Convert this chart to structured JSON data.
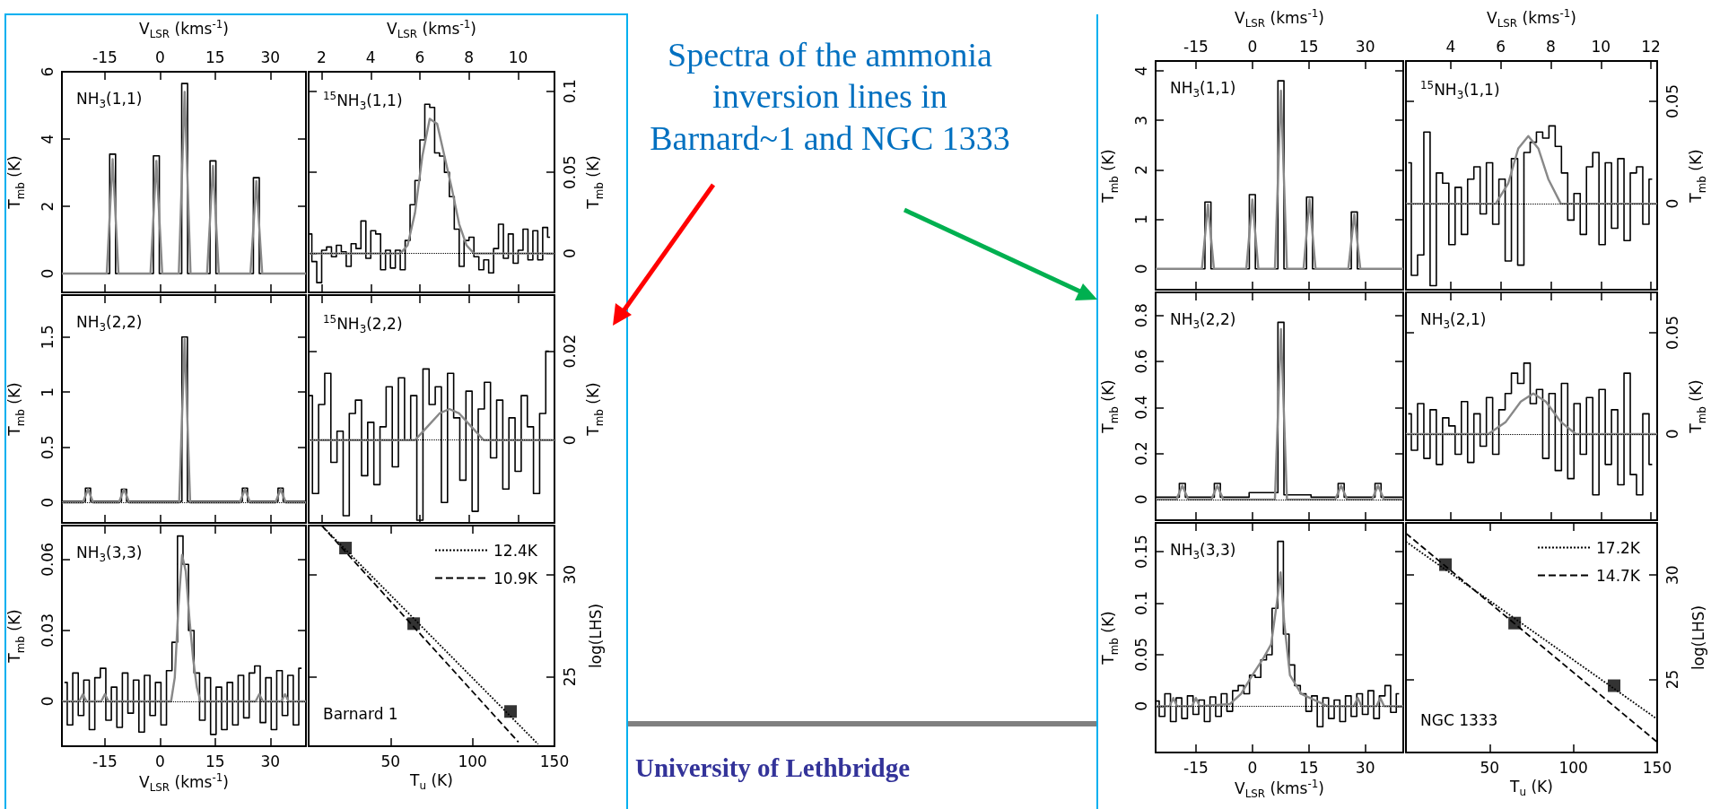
{
  "chart_data": [
    {
      "type": "line",
      "title": "NH$_{3}$(1,1)",
      "x2label": "V$_{LSR}$ (kms$^{-1}$)",
      "ylabel": "T$_{mb}$ (K)",
      "xlim": [
        -26.7,
        39.7
      ],
      "xticks": [
        -15,
        0,
        15,
        30
      ],
      "x2lim": [
        -26.7,
        39.7
      ],
      "x2ticks": [
        -15,
        0,
        15,
        30
      ],
      "ylim": [
        -0.56,
        6
      ],
      "yticks": [
        0,
        2,
        4,
        6
      ],
      "tick_labels": "y",
      "marker": "none",
      "annotations": [
        "Spectra of the ammonia inversion lines in Barnard~1  and NGC 1333",
        "University of Lethbridge"
      ],
      "series": [
        {
          "type": "step",
          "color": "#000000",
          "x": [
            -26.7,
            -14.5,
            -12.9,
            -11.3,
            -2.6,
            -1,
            0.6,
            5.1,
            6.7,
            8.3,
            12.8,
            14.4,
            16,
            24.6,
            26.2,
            27.8,
            39.7
          ],
          "values": [
            0,
            0,
            3.55,
            0,
            0,
            3.5,
            0,
            0,
            5.65,
            0,
            0,
            3.35,
            0,
            0,
            2.85,
            0,
            0
          ]
        },
        {
          "color": "#888888",
          "x": [
            -26.7,
            -14.5,
            -12.9,
            -11.3,
            -2.6,
            -1,
            0.6,
            5.1,
            6.7,
            8.3,
            12.8,
            14.4,
            16,
            24.6,
            26.2,
            27.8,
            39.7
          ],
          "values": [
            0,
            0,
            3.4,
            0,
            0,
            3.35,
            0,
            0,
            5.4,
            0,
            0,
            3.2,
            0,
            0,
            2.75,
            0,
            0
          ]
        }
      ]
    },
    {
      "type": "line",
      "title": "$^{15}$NH$_{3}$(1,1)",
      "x2label": "V$_{LSR}$ (kms$^{-1}$)",
      "y2label": "T$_{mb}$ (K)",
      "xlim": [
        1.47,
        11.48
      ],
      "xticks": [
        2,
        4,
        6,
        8,
        10
      ],
      "x2lim": [
        1.47,
        11.48
      ],
      "x2ticks": [
        2,
        4,
        6,
        8,
        10
      ],
      "y2lim": [
        -0.024,
        0.112
      ],
      "y2ticks": [
        0,
        0.05,
        0.1
      ],
      "tick_labels": "y",
      "marker": "none",
      "ref_lines": [
        {
          "axis": "y2",
          "value": 0,
          "line_style": "dotted",
          "color": "#000000"
        }
      ],
      "series": [
        {
          "type": "step",
          "color": "#000000",
          "axis": "y2",
          "x": [
            1.5,
            1.7,
            1.9,
            2.1,
            2.3,
            2.5,
            2.7,
            2.9,
            3.1,
            3.3,
            3.5,
            3.7,
            3.9,
            4.1,
            4.3,
            4.5,
            4.7,
            4.9,
            5.1,
            5.3,
            5.5,
            5.7,
            5.9,
            6.1,
            6.3,
            6.5,
            6.7,
            6.9,
            7.1,
            7.3,
            7.5,
            7.7,
            7.9,
            8.1,
            8.3,
            8.5,
            8.7,
            8.9,
            9.1,
            9.3,
            9.5,
            9.7,
            9.9,
            10.1,
            10.3,
            10.5,
            10.7,
            10.9,
            11.1,
            11.3
          ],
          "values": [
            0.012,
            -0.005,
            -0.018,
            0.002,
            0.004,
            -0.002,
            0.005,
            0.001,
            -0.008,
            0.006,
            0.003,
            0.02,
            -0.003,
            0.014,
            0.012,
            -0.01,
            0.002,
            -0.009,
            0.002,
            -0.01,
            0.008,
            0.03,
            0.045,
            0.07,
            0.092,
            0.09,
            0.062,
            0.06,
            0.05,
            0.035,
            0.015,
            -0.008,
            0.008,
            0.01,
            -0.002,
            -0.01,
            -0.004,
            -0.012,
            0.003,
            0.018,
            -0.003,
            0.012,
            -0.006,
            0.002,
            0.015,
            -0.004,
            0.014,
            -0.004,
            0.016,
            0.01
          ]
        },
        {
          "color": "#888888",
          "axis": "y2",
          "x": [
            1.47,
            5.2,
            5.5,
            5.8,
            6.1,
            6.4,
            6.7,
            7.0,
            7.3,
            7.6,
            7.9,
            8.2,
            11.48
          ],
          "values": [
            0,
            0,
            0.005,
            0.025,
            0.06,
            0.083,
            0.08,
            0.06,
            0.04,
            0.018,
            0.005,
            0,
            0
          ]
        }
      ]
    },
    {
      "type": "line",
      "title": "NH$_{3}$(2,2)",
      "ylabel": "T$_{mb}$ (K)",
      "xlim": [
        -26.7,
        39.7
      ],
      "xticks": [
        -15,
        0,
        15,
        30
      ],
      "ylim": [
        -0.185,
        1.88
      ],
      "yticks": [
        0,
        0.5,
        1,
        1.5
      ],
      "tick_labels": "y",
      "marker": "none",
      "ref_lines": [
        {
          "axis": "y",
          "value": 0,
          "line_style": "dotted",
          "color": "#000000"
        }
      ],
      "series": [
        {
          "type": "step",
          "color": "#000000",
          "x": [
            -26.7,
            -21,
            -19.6,
            -18.2,
            -11.2,
            -9.8,
            -8.4,
            5.2,
            6.7,
            8.2,
            21.7,
            23.1,
            24.5,
            31.4,
            32.8,
            34.2,
            39.7
          ],
          "values": [
            0.01,
            0.01,
            0.13,
            0.01,
            0.01,
            0.12,
            0.01,
            0.01,
            1.5,
            0.01,
            0.01,
            0.13,
            0.01,
            0.01,
            0.13,
            0.01,
            0.01
          ]
        },
        {
          "color": "#888888",
          "x": [
            -26.7,
            -21,
            -19.6,
            -18.2,
            -11.2,
            -9.8,
            -8.4,
            5.2,
            6.7,
            8.2,
            21.7,
            23.1,
            24.5,
            31.4,
            32.8,
            34.2,
            39.7
          ],
          "values": [
            0,
            0,
            0.12,
            0,
            0,
            0.12,
            0,
            0,
            1.48,
            0,
            0,
            0.12,
            0,
            0,
            0.12,
            0,
            0
          ]
        }
      ]
    },
    {
      "type": "line",
      "title": "$^{15}$NH$_{3}$(2,2)",
      "y2label": "T$_{mb}$ (K)",
      "xlim": [
        1.47,
        11.48
      ],
      "xticks": [
        2,
        4,
        6,
        8,
        10
      ],
      "y2lim": [
        -0.0186,
        0.0326
      ],
      "y2ticks": [
        0,
        0.02
      ],
      "tick_labels": "y",
      "marker": "none",
      "ref_lines": [
        {
          "axis": "y2",
          "value": 0,
          "line_style": "dotted",
          "color": "#000000"
        }
      ],
      "series": [
        {
          "type": "step",
          "color": "#000000",
          "axis": "y2",
          "x": [
            1.5,
            1.75,
            2,
            2.25,
            2.5,
            2.75,
            3,
            3.25,
            3.5,
            3.75,
            4,
            4.25,
            4.5,
            4.75,
            5,
            5.25,
            5.5,
            5.75,
            6,
            6.25,
            6.5,
            6.75,
            7,
            7.25,
            7.5,
            7.75,
            8,
            8.25,
            8.5,
            8.75,
            9,
            9.25,
            9.5,
            9.75,
            10,
            10.25,
            10.5,
            10.75,
            11,
            11.25
          ],
          "values": [
            0.01,
            -0.012,
            0.008,
            0.015,
            -0.005,
            0.002,
            -0.017,
            0.006,
            0.009,
            -0.008,
            0.004,
            -0.01,
            0.003,
            0.012,
            -0.006,
            0.014,
            0,
            0.01,
            -0.018,
            0.016,
            0.008,
            0.012,
            -0.014,
            0.015,
            0.005,
            -0.009,
            0.011,
            -0.016,
            0.007,
            0.013,
            -0.004,
            0.009,
            -0.011,
            0.005,
            -0.007,
            0.01,
            0.003,
            -0.012,
            0.006,
            0.02
          ]
        },
        {
          "color": "#888888",
          "axis": "y2",
          "x": [
            1.47,
            5.8,
            6.3,
            6.8,
            7.2,
            7.6,
            8.1,
            8.6,
            11.48
          ],
          "values": [
            0,
            0,
            0.003,
            0.006,
            0.007,
            0.006,
            0.003,
            0,
            0
          ]
        }
      ]
    },
    {
      "type": "line",
      "title": "NH$_{3}$(3,3)",
      "xlabel": "V$_{LSR}$ (kms$^{-1}$)",
      "ylabel": "T$_{mb}$ (K)",
      "xlim": [
        -26.7,
        39.7
      ],
      "xticks": [
        -15,
        0,
        15,
        30
      ],
      "ylim": [
        -0.019,
        0.0744
      ],
      "yticks": [
        0,
        0.03,
        0.06
      ],
      "marker": "none",
      "ref_lines": [
        {
          "axis": "y",
          "value": 0,
          "line_style": "dotted",
          "color": "#000000"
        }
      ],
      "series": [
        {
          "type": "step",
          "color": "#000000",
          "x": [
            -26,
            -24.5,
            -23,
            -21.5,
            -20,
            -18.5,
            -17,
            -15.5,
            -14,
            -12.5,
            -11,
            -9.5,
            -8,
            -6.5,
            -5,
            -3.5,
            -2,
            -0.5,
            1,
            2.5,
            4,
            5.5,
            7,
            8.5,
            10,
            11.5,
            13,
            14.5,
            16,
            17.5,
            19,
            20.5,
            22,
            23.5,
            25,
            26.5,
            28,
            29.5,
            31,
            32.5,
            34,
            35.5,
            37,
            38.5
          ],
          "values": [
            0.008,
            -0.01,
            0.012,
            -0.006,
            0.009,
            -0.012,
            0.01,
            0.014,
            -0.008,
            0.006,
            -0.011,
            0.012,
            -0.005,
            0.009,
            -0.013,
            0.011,
            -0.006,
            0.008,
            -0.01,
            0.013,
            0.025,
            0.07,
            0.058,
            0.03,
            0.012,
            -0.008,
            0.01,
            -0.014,
            0.006,
            -0.012,
            0.008,
            -0.01,
            0.011,
            -0.007,
            0.012,
            0.015,
            -0.009,
            0.01,
            -0.012,
            0.013,
            -0.006,
            0.011,
            -0.01,
            0.014
          ]
        },
        {
          "color": "#888888",
          "x": [
            -26.7,
            -22,
            -21,
            -20,
            -16,
            -15,
            -14,
            3,
            4,
            5,
            6,
            7,
            8,
            9,
            10,
            11,
            26,
            27,
            28,
            33,
            34,
            35,
            39.7
          ],
          "values": [
            0,
            0,
            0.003,
            0,
            0,
            0.003,
            0,
            0,
            0.01,
            0.04,
            0.062,
            0.055,
            0.035,
            0.018,
            0.006,
            0,
            0,
            0.003,
            0,
            0,
            0.003,
            0,
            0
          ]
        }
      ]
    },
    {
      "type": "line",
      "xlabel": "T$_{u}$ (K)",
      "y2label": "log(LHS)",
      "xlim": [
        0,
        150
      ],
      "xticks": [
        50,
        100,
        150
      ],
      "y2lim": [
        21.6,
        32.4
      ],
      "y2ticks": [
        25,
        30
      ],
      "marker": "none",
      "legend": "top right",
      "annotations": [
        "Barnard 1"
      ],
      "series": [
        {
          "type": "scatter",
          "marker": "square",
          "color": "#000000",
          "axis": "y2",
          "x": [
            22.5,
            64.1,
            123.2
          ],
          "values": [
            31.3,
            27.6,
            23.3
          ]
        },
        {
          "name": "12.4K",
          "color": "#000000",
          "line_style": "dotted",
          "axis": "y2",
          "x": [
            8,
            140
          ],
          "values": [
            32.4,
            21.7
          ]
        },
        {
          "name": "10.9K",
          "color": "#000000",
          "line_style": "dashed",
          "axis": "y2",
          "x": [
            8,
            128
          ],
          "values": [
            32.4,
            21.8
          ]
        }
      ]
    },
    {
      "type": "line",
      "title": "NH$_{3}$(1,1)",
      "x2label": "V$_{LSR}$ (kms$^{-1}$)",
      "ylabel": "T$_{mb}$ (K)",
      "xlim": [
        -25.7,
        40.1
      ],
      "xticks": [
        -15,
        0,
        15,
        30
      ],
      "x2lim": [
        -25.7,
        40.1
      ],
      "x2ticks": [
        -15,
        0,
        15,
        30
      ],
      "ylim": [
        -0.42,
        4.2
      ],
      "yticks": [
        0,
        1,
        2,
        3,
        4
      ],
      "tick_labels": "y",
      "marker": "none",
      "series": [
        {
          "type": "step",
          "color": "#000000",
          "x": [
            -25.7,
            -13.4,
            -11.8,
            -10.2,
            -1.6,
            0,
            1.6,
            6,
            7.6,
            9.2,
            13.6,
            15.2,
            16.8,
            25.5,
            27.1,
            28.7,
            40.1
          ],
          "values": [
            0,
            0,
            1.35,
            0,
            0,
            1.5,
            0,
            0,
            3.8,
            0,
            0,
            1.45,
            0,
            0,
            1.15,
            0,
            0
          ]
        },
        {
          "color": "#888888",
          "x": [
            -25.7,
            -13.4,
            -11.8,
            -10.2,
            -1.6,
            0,
            1.6,
            6,
            7.6,
            9.2,
            13.6,
            15.2,
            16.8,
            25.5,
            27.1,
            28.7,
            40.1
          ],
          "values": [
            0,
            0,
            1.3,
            0,
            0,
            1.4,
            0,
            0,
            3.6,
            0,
            0,
            1.4,
            0,
            0,
            1.1,
            0,
            0
          ]
        }
      ]
    },
    {
      "type": "line",
      "title": "$^{15}$NH$_{3}$(1,1)",
      "x2label": "V$_{LSR}$ (kms$^{-1}$)",
      "y2label": "T$_{mb}$ (K)",
      "xlim": [
        2.21,
        12.25
      ],
      "xticks": [
        4,
        6,
        8,
        10,
        12
      ],
      "x2lim": [
        2.21,
        12.25
      ],
      "x2ticks": [
        4,
        6,
        8,
        10,
        12
      ],
      "y2lim": [
        -0.042,
        0.0697
      ],
      "y2ticks": [
        0,
        0.05
      ],
      "tick_labels": "y",
      "marker": "none",
      "ref_lines": [
        {
          "axis": "y2",
          "value": 0,
          "line_style": "dotted",
          "color": "#000000"
        }
      ],
      "series": [
        {
          "type": "step",
          "color": "#000000",
          "axis": "y2",
          "x": [
            2.3,
            2.55,
            2.8,
            3.05,
            3.3,
            3.55,
            3.8,
            4.05,
            4.3,
            4.55,
            4.8,
            5.05,
            5.3,
            5.55,
            5.8,
            6.05,
            6.3,
            6.55,
            6.8,
            7.05,
            7.3,
            7.55,
            7.8,
            8.05,
            8.3,
            8.55,
            8.8,
            9.05,
            9.3,
            9.55,
            9.8,
            10.05,
            10.3,
            10.55,
            10.8,
            11.05,
            11.3,
            11.55,
            11.8,
            12.05
          ],
          "values": [
            0.02,
            -0.035,
            -0.025,
            0.035,
            -0.04,
            0.015,
            0.01,
            -0.02,
            0.008,
            -0.015,
            0.012,
            0.018,
            -0.005,
            0.02,
            -0.01,
            0.012,
            -0.028,
            0.022,
            -0.03,
            0.025,
            0.03,
            0.035,
            0.032,
            0.038,
            0.028,
            0.015,
            -0.008,
            0.005,
            -0.015,
            0.018,
            0.025,
            -0.02,
            0.02,
            -0.012,
            0.022,
            -0.018,
            0.015,
            0.018,
            -0.01,
            0.012
          ]
        },
        {
          "color": "#888888",
          "axis": "y2",
          "x": [
            2.21,
            5.8,
            6.3,
            6.7,
            7.1,
            7.5,
            7.9,
            8.4,
            12.25
          ],
          "values": [
            0,
            0,
            0.01,
            0.027,
            0.033,
            0.027,
            0.012,
            0,
            0
          ]
        }
      ]
    },
    {
      "type": "line",
      "title": "NH$_{3}$(2,2)",
      "ylabel": "T$_{mb}$ (K)",
      "xlim": [
        -25.7,
        40.1
      ],
      "xticks": [
        -15,
        0,
        15,
        30
      ],
      "ylim": [
        -0.09,
        0.9
      ],
      "yticks": [
        0,
        0.2,
        0.4,
        0.6,
        0.8
      ],
      "tick_labels": "y",
      "marker": "none",
      "ref_lines": [
        {
          "axis": "y",
          "value": 0,
          "line_style": "dotted",
          "color": "#000000"
        }
      ],
      "series": [
        {
          "type": "step",
          "color": "#000000",
          "x": [
            -25.7,
            -20.2,
            -18.6,
            -17,
            -10.9,
            -9.3,
            -7.7,
            6,
            7.6,
            9.2,
            22,
            23.6,
            25.2,
            31.8,
            33.4,
            35,
            40.1
          ],
          "values": [
            0.01,
            0.01,
            0.07,
            0.01,
            0.01,
            0.07,
            0.01,
            0.03,
            0.77,
            0.02,
            0.01,
            0.07,
            0.01,
            0.01,
            0.07,
            0.01,
            0.01
          ]
        },
        {
          "color": "#888888",
          "x": [
            -25.7,
            -20.2,
            -18.6,
            -17,
            -10.9,
            -9.3,
            -7.7,
            6,
            7.6,
            9.2,
            22,
            23.6,
            25.2,
            31.8,
            33.4,
            35,
            40.1
          ],
          "values": [
            0,
            0,
            0.06,
            0,
            0,
            0.06,
            0,
            0,
            0.74,
            0,
            0,
            0.06,
            0,
            0,
            0.06,
            0,
            0
          ]
        }
      ]
    },
    {
      "type": "line",
      "title": "NH$_{3}$(2,1)",
      "y2label": "T$_{mb}$ (K)",
      "xlim": [
        2.21,
        12.25
      ],
      "xticks": [
        4,
        6,
        8,
        10,
        12
      ],
      "y2lim": [
        -0.0425,
        0.0699
      ],
      "y2ticks": [
        0,
        0.05
      ],
      "tick_labels": "y",
      "marker": "none",
      "ref_lines": [
        {
          "axis": "y2",
          "value": 0,
          "line_style": "dotted",
          "color": "#000000"
        }
      ],
      "series": [
        {
          "type": "step",
          "color": "#000000",
          "axis": "y2",
          "x": [
            2.3,
            2.55,
            2.8,
            3.05,
            3.3,
            3.55,
            3.8,
            4.05,
            4.3,
            4.55,
            4.8,
            5.05,
            5.3,
            5.55,
            5.8,
            6.05,
            6.3,
            6.55,
            6.8,
            7.05,
            7.3,
            7.55,
            7.8,
            8.05,
            8.3,
            8.55,
            8.8,
            9.05,
            9.3,
            9.55,
            9.8,
            10.05,
            10.3,
            10.55,
            10.8,
            11.05,
            11.3,
            11.55,
            11.8,
            12.05
          ],
          "values": [
            0.01,
            -0.008,
            0.015,
            -0.012,
            0.012,
            -0.015,
            0.008,
            0.004,
            -0.01,
            0.016,
            -0.014,
            0.01,
            -0.006,
            0.018,
            -0.01,
            0.012,
            0.02,
            0.03,
            0.025,
            0.035,
            0.015,
            0.022,
            -0.012,
            0.02,
            -0.018,
            0.025,
            -0.022,
            0.015,
            -0.01,
            0.018,
            -0.03,
            0.022,
            -0.015,
            0.012,
            -0.025,
            0.03,
            -0.02,
            -0.03,
            0.01,
            -0.015
          ]
        },
        {
          "color": "#888888",
          "axis": "y2",
          "x": [
            2.21,
            5.5,
            6.2,
            6.8,
            7.3,
            7.8,
            8.4,
            9,
            12.25
          ],
          "values": [
            0,
            0,
            0.006,
            0.016,
            0.02,
            0.016,
            0.006,
            0,
            0
          ]
        }
      ]
    },
    {
      "type": "line",
      "title": "NH$_{3}$(3,3)",
      "xlabel": "V$_{LSR}$ (kms$^{-1}$)",
      "ylabel": "T$_{mb}$ (K)",
      "xlim": [
        -25.7,
        40.1
      ],
      "xticks": [
        -15,
        0,
        15,
        30
      ],
      "ylim": [
        -0.045,
        0.178
      ],
      "yticks": [
        0,
        0.05,
        0.1,
        0.15
      ],
      "marker": "none",
      "ref_lines": [
        {
          "axis": "y",
          "value": 0,
          "line_style": "dotted",
          "color": "#000000"
        }
      ],
      "series": [
        {
          "type": "step",
          "color": "#000000",
          "x": [
            -25.5,
            -24,
            -22.5,
            -21,
            -19.5,
            -18,
            -16.5,
            -15,
            -13.5,
            -12,
            -10.5,
            -9,
            -7.5,
            -6,
            -4.5,
            -3,
            -1.5,
            0,
            1.5,
            3,
            4.5,
            6,
            7.5,
            9,
            10.5,
            12,
            13.5,
            15,
            16.5,
            18,
            19.5,
            21,
            22.5,
            24,
            25.5,
            27,
            28.5,
            30,
            31.5,
            33,
            34.5,
            36,
            37.5,
            39
          ],
          "values": [
            0.005,
            -0.01,
            0.012,
            -0.015,
            0.008,
            -0.012,
            0.01,
            -0.008,
            0.006,
            -0.015,
            0.009,
            -0.01,
            0.012,
            -0.005,
            0.015,
            0.02,
            0.012,
            0.03,
            0.028,
            0.045,
            0.05,
            0.095,
            0.16,
            0.07,
            0.04,
            0.02,
            0.012,
            -0.005,
            0.01,
            -0.02,
            0.008,
            -0.012,
            0.006,
            -0.015,
            0.01,
            -0.01,
            0.012,
            -0.008,
            0.015,
            -0.012,
            0.01,
            0.02,
            -0.006,
            0.012
          ]
        },
        {
          "color": "#888888",
          "x": [
            -25.7,
            -22,
            -21,
            -20,
            -16,
            -15,
            -14,
            -6,
            -3,
            0,
            3,
            5,
            6.5,
            7.5,
            8.5,
            10,
            13,
            20,
            27,
            28,
            29,
            33,
            34,
            35,
            40.1
          ],
          "values": [
            0,
            0,
            0.008,
            0,
            0,
            0.008,
            0,
            0.002,
            0.012,
            0.03,
            0.047,
            0.06,
            0.1,
            0.13,
            0.08,
            0.03,
            0.012,
            0,
            0,
            0.008,
            0,
            0,
            0.008,
            0,
            0
          ]
        }
      ]
    },
    {
      "type": "line",
      "xlabel": "T$_{u}$ (K)",
      "y2label": "log(LHS)",
      "xlim": [
        0,
        150
      ],
      "xticks": [
        50,
        100,
        150
      ],
      "y2lim": [
        21.5,
        32.5
      ],
      "y2ticks": [
        25,
        30
      ],
      "marker": "none",
      "legend": "top right",
      "annotations": [
        "NGC 1333"
      ],
      "series": [
        {
          "type": "scatter",
          "marker": "square",
          "color": "#000000",
          "axis": "y2",
          "x": [
            23.6,
            64.9,
            124.3
          ],
          "values": [
            30.5,
            27.7,
            24.7
          ]
        },
        {
          "name": "17.2K",
          "color": "#000000",
          "line_style": "dotted",
          "axis": "y2",
          "x": [
            0,
            150
          ],
          "values": [
            31.6,
            23.1
          ]
        },
        {
          "name": "14.7K",
          "color": "#000000",
          "line_style": "dashed",
          "axis": "y2",
          "x": [
            0,
            150
          ],
          "values": [
            32.0,
            22.0
          ]
        }
      ]
    }
  ]
}
